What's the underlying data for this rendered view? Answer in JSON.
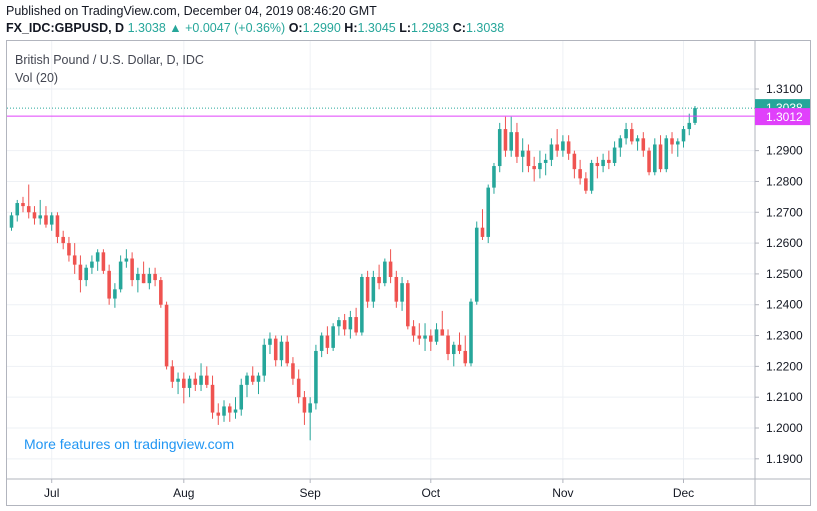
{
  "header": {
    "published": "Published on TradingView.com, December 04, 2019 08:46:20 GMT",
    "symbol": "FX_IDC:GBPUSD, D",
    "last": "1.3038",
    "change": "▲ +0.0047 (+0.36%)",
    "o_label": "O:",
    "o_value": "1.2990",
    "h_label": "H:",
    "h_value": "1.3045",
    "l_label": "L:",
    "l_value": "1.2983",
    "c_label": "C:",
    "c_value": "1.3038"
  },
  "legend": {
    "title": "British Pound / U.S. Dollar, D, IDC",
    "volume": "Vol (20)"
  },
  "promo": "More features on tradingview.com",
  "colors": {
    "up": "#26a69a",
    "down": "#ef5350",
    "last_price_line": "#26a69a",
    "horizontal_line": "#e040fb",
    "grid": "#eef1f5",
    "axis_text": "#131722"
  },
  "chart_data": {
    "type": "candlestick",
    "ylim": [
      1.185,
      1.315
    ],
    "y_ticks": [
      "1.3100",
      "1.2900",
      "1.2800",
      "1.2700",
      "1.2600",
      "1.2500",
      "1.2400",
      "1.2300",
      "1.2200",
      "1.2100",
      "1.2000",
      "1.1900"
    ],
    "y_tick_values": [
      1.31,
      1.29,
      1.28,
      1.27,
      1.26,
      1.25,
      1.24,
      1.23,
      1.22,
      1.21,
      1.2,
      1.19
    ],
    "x_ticks": [
      {
        "label": "Jul",
        "index": 7
      },
      {
        "label": "Aug",
        "index": 30
      },
      {
        "label": "Sep",
        "index": 52
      },
      {
        "label": "Oct",
        "index": 73
      },
      {
        "label": "Nov",
        "index": 96
      },
      {
        "label": "Dec",
        "index": 117
      }
    ],
    "price_labels": [
      {
        "value": 1.3038,
        "text": "1.3038",
        "kind": "last"
      },
      {
        "value": 1.3012,
        "text": "1.3012",
        "kind": "line"
      }
    ],
    "horizontal_line": 1.3012,
    "candles": [
      [
        1.265,
        1.27,
        1.264,
        1.269
      ],
      [
        1.269,
        1.274,
        1.267,
        1.273
      ],
      [
        1.273,
        1.275,
        1.27,
        1.272
      ],
      [
        1.272,
        1.279,
        1.268,
        1.27
      ],
      [
        1.27,
        1.272,
        1.266,
        1.268
      ],
      [
        1.268,
        1.274,
        1.266,
        1.269
      ],
      [
        1.269,
        1.272,
        1.265,
        1.266
      ],
      [
        1.266,
        1.27,
        1.264,
        1.269
      ],
      [
        1.269,
        1.27,
        1.26,
        1.262
      ],
      [
        1.262,
        1.264,
        1.258,
        1.26
      ],
      [
        1.26,
        1.262,
        1.254,
        1.256
      ],
      [
        1.256,
        1.26,
        1.25,
        1.253
      ],
      [
        1.253,
        1.256,
        1.244,
        1.248
      ],
      [
        1.248,
        1.253,
        1.246,
        1.252
      ],
      [
        1.252,
        1.256,
        1.25,
        1.254
      ],
      [
        1.254,
        1.258,
        1.251,
        1.257
      ],
      [
        1.257,
        1.258,
        1.25,
        1.251
      ],
      [
        1.251,
        1.253,
        1.24,
        1.242
      ],
      [
        1.242,
        1.247,
        1.239,
        1.245
      ],
      [
        1.245,
        1.256,
        1.244,
        1.254
      ],
      [
        1.254,
        1.258,
        1.252,
        1.255
      ],
      [
        1.255,
        1.257,
        1.246,
        1.248
      ],
      [
        1.248,
        1.252,
        1.244,
        1.25
      ],
      [
        1.25,
        1.254,
        1.247,
        1.247
      ],
      [
        1.247,
        1.252,
        1.245,
        1.25
      ],
      [
        1.25,
        1.252,
        1.246,
        1.248
      ],
      [
        1.248,
        1.249,
        1.239,
        1.24
      ],
      [
        1.24,
        1.241,
        1.219,
        1.22
      ],
      [
        1.22,
        1.222,
        1.213,
        1.215
      ],
      [
        1.215,
        1.218,
        1.211,
        1.216
      ],
      [
        1.216,
        1.218,
        1.208,
        1.213
      ],
      [
        1.213,
        1.217,
        1.21,
        1.216
      ],
      [
        1.216,
        1.218,
        1.212,
        1.214
      ],
      [
        1.214,
        1.221,
        1.212,
        1.217
      ],
      [
        1.217,
        1.22,
        1.213,
        1.214
      ],
      [
        1.214,
        1.217,
        1.203,
        1.205
      ],
      [
        1.205,
        1.208,
        1.201,
        1.204
      ],
      [
        1.204,
        1.209,
        1.202,
        1.207
      ],
      [
        1.207,
        1.208,
        1.202,
        1.205
      ],
      [
        1.205,
        1.21,
        1.203,
        1.206
      ],
      [
        1.206,
        1.216,
        1.204,
        1.214
      ],
      [
        1.214,
        1.218,
        1.21,
        1.217
      ],
      [
        1.217,
        1.22,
        1.214,
        1.215
      ],
      [
        1.215,
        1.218,
        1.211,
        1.217
      ],
      [
        1.217,
        1.229,
        1.215,
        1.227
      ],
      [
        1.227,
        1.231,
        1.224,
        1.229
      ],
      [
        1.229,
        1.23,
        1.22,
        1.222
      ],
      [
        1.222,
        1.23,
        1.22,
        1.228
      ],
      [
        1.228,
        1.23,
        1.22,
        1.221
      ],
      [
        1.221,
        1.223,
        1.214,
        1.216
      ],
      [
        1.216,
        1.219,
        1.208,
        1.21
      ],
      [
        1.21,
        1.212,
        1.201,
        1.205
      ],
      [
        1.205,
        1.21,
        1.196,
        1.208
      ],
      [
        1.208,
        1.227,
        1.206,
        1.225
      ],
      [
        1.225,
        1.231,
        1.223,
        1.23
      ],
      [
        1.23,
        1.233,
        1.224,
        1.226
      ],
      [
        1.226,
        1.234,
        1.225,
        1.233
      ],
      [
        1.233,
        1.236,
        1.23,
        1.235
      ],
      [
        1.235,
        1.237,
        1.23,
        1.232
      ],
      [
        1.232,
        1.238,
        1.229,
        1.236
      ],
      [
        1.236,
        1.239,
        1.23,
        1.231
      ],
      [
        1.231,
        1.25,
        1.23,
        1.249
      ],
      [
        1.249,
        1.251,
        1.239,
        1.241
      ],
      [
        1.241,
        1.251,
        1.239,
        1.249
      ],
      [
        1.249,
        1.253,
        1.245,
        1.247
      ],
      [
        1.247,
        1.255,
        1.246,
        1.254
      ],
      [
        1.254,
        1.258,
        1.247,
        1.249
      ],
      [
        1.249,
        1.251,
        1.239,
        1.241
      ],
      [
        1.241,
        1.249,
        1.238,
        1.247
      ],
      [
        1.247,
        1.248,
        1.232,
        1.233
      ],
      [
        1.233,
        1.235,
        1.228,
        1.23
      ],
      [
        1.23,
        1.234,
        1.227,
        1.229
      ],
      [
        1.229,
        1.234,
        1.225,
        1.23
      ],
      [
        1.23,
        1.232,
        1.225,
        1.228
      ],
      [
        1.228,
        1.234,
        1.227,
        1.232
      ],
      [
        1.232,
        1.238,
        1.23,
        1.23
      ],
      [
        1.23,
        1.232,
        1.222,
        1.224
      ],
      [
        1.224,
        1.228,
        1.22,
        1.227
      ],
      [
        1.227,
        1.231,
        1.224,
        1.225
      ],
      [
        1.225,
        1.23,
        1.22,
        1.221
      ],
      [
        1.221,
        1.242,
        1.22,
        1.241
      ],
      [
        1.241,
        1.267,
        1.24,
        1.265
      ],
      [
        1.265,
        1.271,
        1.261,
        1.262
      ],
      [
        1.262,
        1.279,
        1.26,
        1.278
      ],
      [
        1.278,
        1.286,
        1.276,
        1.285
      ],
      [
        1.285,
        1.299,
        1.283,
        1.297
      ],
      [
        1.297,
        1.301,
        1.288,
        1.29
      ],
      [
        1.29,
        1.301,
        1.288,
        1.296
      ],
      [
        1.296,
        1.299,
        1.286,
        1.288
      ],
      [
        1.288,
        1.294,
        1.283,
        1.29
      ],
      [
        1.29,
        1.292,
        1.283,
        1.285
      ],
      [
        1.285,
        1.288,
        1.28,
        1.284
      ],
      [
        1.284,
        1.29,
        1.281,
        1.286
      ],
      [
        1.286,
        1.289,
        1.282,
        1.287
      ],
      [
        1.287,
        1.294,
        1.285,
        1.292
      ],
      [
        1.292,
        1.297,
        1.288,
        1.29
      ],
      [
        1.29,
        1.295,
        1.288,
        1.293
      ],
      [
        1.293,
        1.295,
        1.287,
        1.289
      ],
      [
        1.289,
        1.29,
        1.281,
        1.284
      ],
      [
        1.284,
        1.287,
        1.279,
        1.281
      ],
      [
        1.281,
        1.283,
        1.276,
        1.277
      ],
      [
        1.277,
        1.287,
        1.276,
        1.286
      ],
      [
        1.286,
        1.288,
        1.281,
        1.285
      ],
      [
        1.285,
        1.289,
        1.283,
        1.287
      ],
      [
        1.287,
        1.29,
        1.284,
        1.286
      ],
      [
        1.286,
        1.293,
        1.285,
        1.291
      ],
      [
        1.291,
        1.295,
        1.288,
        1.294
      ],
      [
        1.294,
        1.299,
        1.292,
        1.297
      ],
      [
        1.297,
        1.299,
        1.292,
        1.293
      ],
      [
        1.293,
        1.295,
        1.29,
        1.294
      ],
      [
        1.294,
        1.296,
        1.288,
        1.29
      ],
      [
        1.29,
        1.291,
        1.282,
        1.283
      ],
      [
        1.283,
        1.294,
        1.282,
        1.292
      ],
      [
        1.292,
        1.295,
        1.283,
        1.284
      ],
      [
        1.284,
        1.295,
        1.283,
        1.294
      ],
      [
        1.294,
        1.296,
        1.289,
        1.292
      ],
      [
        1.292,
        1.294,
        1.288,
        1.293
      ],
      [
        1.293,
        1.298,
        1.291,
        1.297
      ],
      [
        1.297,
        1.302,
        1.295,
        1.299
      ],
      [
        1.299,
        1.3045,
        1.2983,
        1.3038
      ]
    ]
  }
}
